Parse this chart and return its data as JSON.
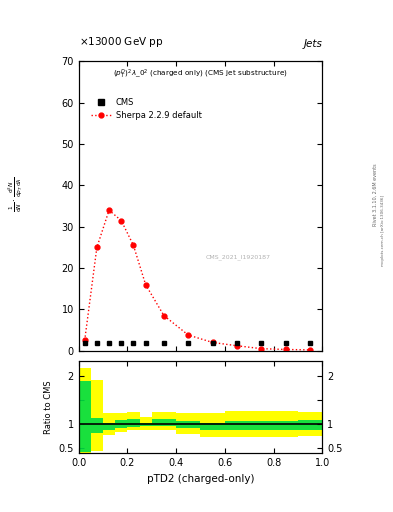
{
  "title_top": "13000 GeV pp",
  "title_right": "Jets",
  "plot_label": "$(p_T^D)^2\\lambda\\_0^2$ (charged only) (CMS jet substructure)",
  "cms_label": "CMS",
  "sherpa_label": "Sherpa 2.2.9 default",
  "rivet_label": "Rivet 3.1.10, 2.6M events",
  "mcplots_label": "mcplots.cern.ch [arXiv:1306.3436]",
  "inspire_label": "CMS_2021_I1920187",
  "xlabel": "pTD2 (charged-only)",
  "ylabel_top": "mathrm d^2N",
  "ylabel_mid": "mathrm d p_T mathrm d lambda",
  "ylabel_ratio": "Ratio to CMS",
  "ylim_main": [
    0,
    70
  ],
  "ylim_ratio": [
    0.4,
    2.3
  ],
  "sherpa_x": [
    0.025,
    0.075,
    0.125,
    0.175,
    0.225,
    0.275,
    0.35,
    0.45,
    0.55,
    0.65,
    0.75,
    0.85,
    0.95
  ],
  "sherpa_y": [
    2.5,
    25.0,
    34.0,
    31.5,
    25.5,
    16.0,
    8.5,
    3.8,
    2.0,
    1.2,
    0.5,
    0.3,
    0.2
  ],
  "cms_x": [
    0.025,
    0.075,
    0.125,
    0.175,
    0.225,
    0.275,
    0.35,
    0.45,
    0.55,
    0.65,
    0.75,
    0.85,
    0.95
  ],
  "cms_y": [
    1.8,
    1.8,
    1.8,
    1.8,
    1.8,
    1.8,
    1.8,
    1.8,
    1.8,
    1.8,
    1.8,
    1.8,
    1.8
  ],
  "ratio_x_edges": [
    0.0,
    0.05,
    0.1,
    0.15,
    0.2,
    0.25,
    0.3,
    0.4,
    0.5,
    0.6,
    0.7,
    0.8,
    0.9,
    1.0
  ],
  "ratio_green_lo": [
    0.42,
    0.82,
    0.87,
    0.92,
    0.94,
    0.96,
    0.96,
    0.92,
    0.88,
    0.88,
    0.88,
    0.88,
    0.88
  ],
  "ratio_green_hi": [
    1.88,
    1.12,
    1.03,
    1.08,
    1.1,
    1.03,
    1.1,
    1.06,
    1.03,
    1.06,
    1.06,
    1.06,
    1.08
  ],
  "ratio_yellow_lo": [
    0.35,
    0.45,
    0.78,
    0.83,
    0.87,
    0.87,
    0.87,
    0.8,
    0.73,
    0.73,
    0.73,
    0.73,
    0.75
  ],
  "ratio_yellow_hi": [
    2.15,
    1.9,
    1.22,
    1.22,
    1.25,
    1.15,
    1.25,
    1.22,
    1.22,
    1.27,
    1.27,
    1.27,
    1.25
  ],
  "color_sherpa": "#ff0000",
  "color_cms_marker": "#000000",
  "color_green": "#00dd44",
  "color_yellow": "#ffff00",
  "bg_color": "#ffffff"
}
